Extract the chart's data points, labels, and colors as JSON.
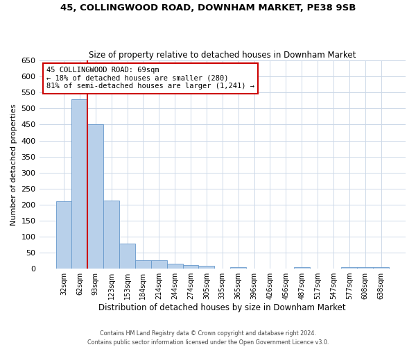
{
  "title1": "45, COLLINGWOOD ROAD, DOWNHAM MARKET, PE38 9SB",
  "title2": "Size of property relative to detached houses in Downham Market",
  "xlabel": "Distribution of detached houses by size in Downham Market",
  "ylabel": "Number of detached properties",
  "footer1": "Contains HM Land Registry data © Crown copyright and database right 2024.",
  "footer2": "Contains public sector information licensed under the Open Government Licence v3.0.",
  "categories": [
    "32sqm",
    "62sqm",
    "93sqm",
    "123sqm",
    "153sqm",
    "184sqm",
    "214sqm",
    "244sqm",
    "274sqm",
    "305sqm",
    "335sqm",
    "365sqm",
    "396sqm",
    "426sqm",
    "456sqm",
    "487sqm",
    "517sqm",
    "547sqm",
    "577sqm",
    "608sqm",
    "638sqm"
  ],
  "values": [
    210,
    530,
    450,
    213,
    78,
    27,
    27,
    15,
    10,
    8,
    0,
    5,
    0,
    0,
    0,
    5,
    0,
    0,
    5,
    5,
    5
  ],
  "bar_color": "#b8d0ea",
  "bar_edge_color": "#6699cc",
  "annotation_text": "45 COLLINGWOOD ROAD: 69sqm\n← 18% of detached houses are smaller (280)\n81% of semi-detached houses are larger (1,241) →",
  "annotation_box_color": "#ffffff",
  "annotation_box_edge_color": "#cc0000",
  "vline_color": "#cc0000",
  "vline_x_index": 1,
  "ylim": [
    0,
    650
  ],
  "yticks": [
    0,
    50,
    100,
    150,
    200,
    250,
    300,
    350,
    400,
    450,
    500,
    550,
    600,
    650
  ],
  "background_color": "#ffffff",
  "grid_color": "#ccd8e8"
}
